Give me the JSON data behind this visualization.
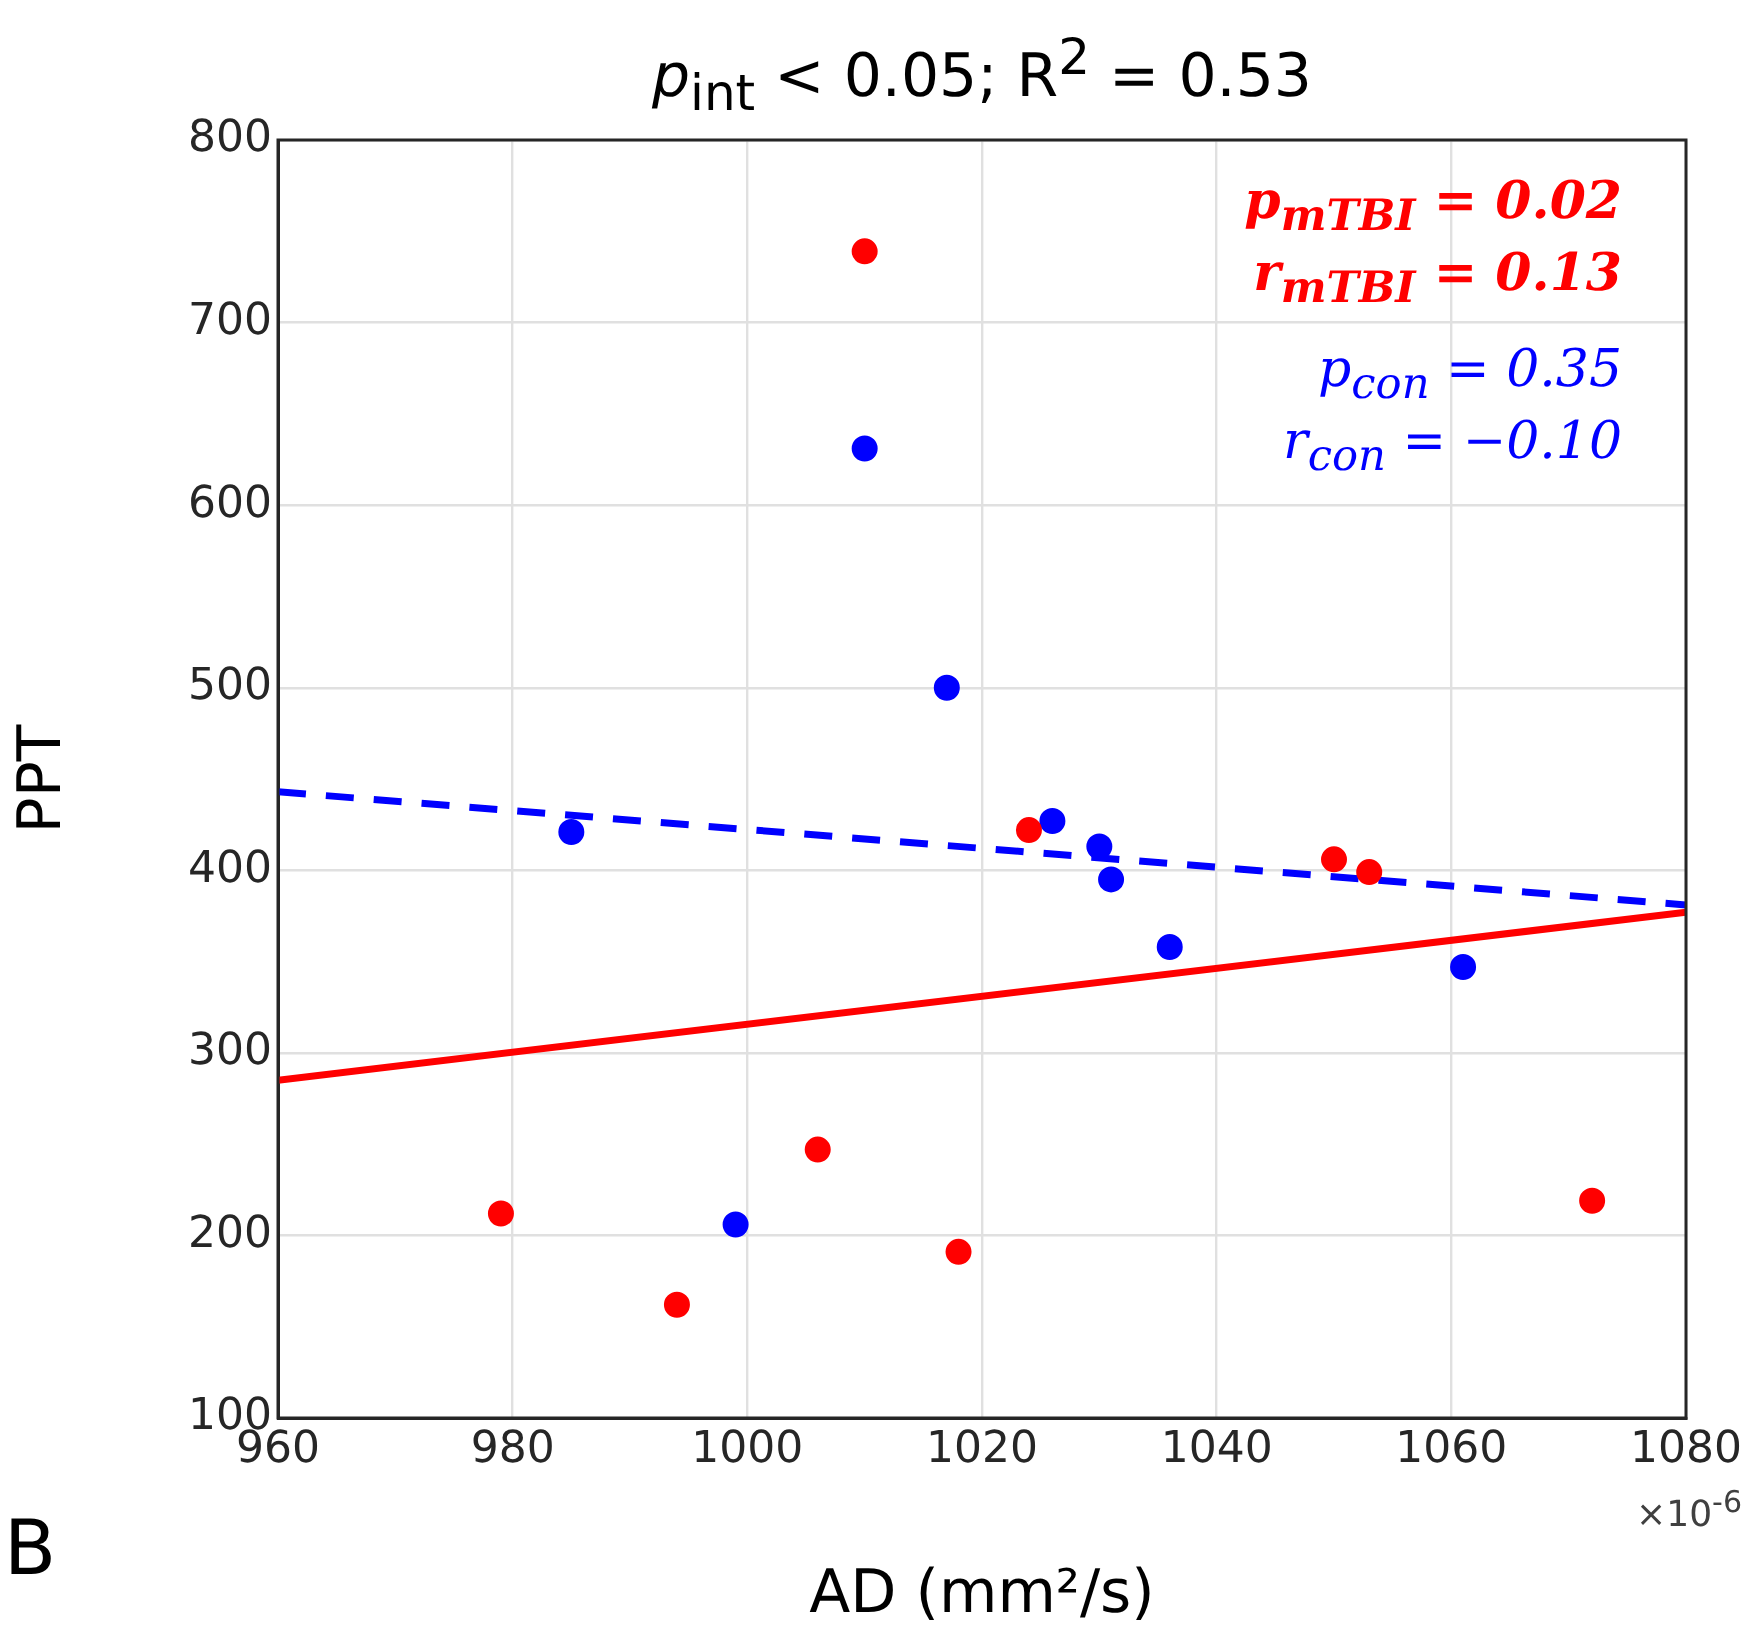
{
  "chart_data": {
    "type": "scatter",
    "title": "p$_{int}$ < 0.05;  R$^{2}$ = 0.53",
    "xlabel": "AD (mm²/s)",
    "ylabel": "PPT",
    "xlim": [
      960,
      1080
    ],
    "xticks": [
      960,
      980,
      1000,
      1020,
      1040,
      1060,
      1080
    ],
    "ylim": [
      100,
      800
    ],
    "yticks": [
      100,
      200,
      300,
      400,
      500,
      600,
      700,
      800
    ],
    "grid": true,
    "legend": false,
    "series": [
      {
        "color": "#ff0000",
        "marker": "circle",
        "x": [
          1010,
          1024,
          979,
          994,
          1006,
          1018,
          1050,
          1053,
          1072
        ],
        "values": [
          739,
          422,
          212,
          162,
          247,
          191,
          406,
          399,
          219
        ]
      },
      {
        "color": "#0000ff",
        "marker": "circle",
        "x": [
          1010,
          1017,
          985,
          999,
          1026,
          1030,
          1031,
          1036,
          1061
        ],
        "values": [
          631,
          500,
          421,
          206,
          427,
          413,
          395,
          358,
          347
        ]
      },
      {
        "type": "line",
        "color": "#ff0000",
        "line_style": "solid",
        "x": [
          960,
          1080
        ],
        "values": [
          285,
          377
        ]
      },
      {
        "type": "line",
        "color": "#0000ff",
        "line_style": "dashed",
        "x": [
          960,
          1080
        ],
        "values": [
          443,
          381
        ]
      }
    ],
    "annotations": [
      "p$_{mTBI}$ = 0.02",
      "r$_{mTBI}$ = 0.13",
      "p$_{con}$ = 0.35",
      "r$_{con}$ = −0.10",
      "×10$^{-6}$",
      "B"
    ]
  }
}
